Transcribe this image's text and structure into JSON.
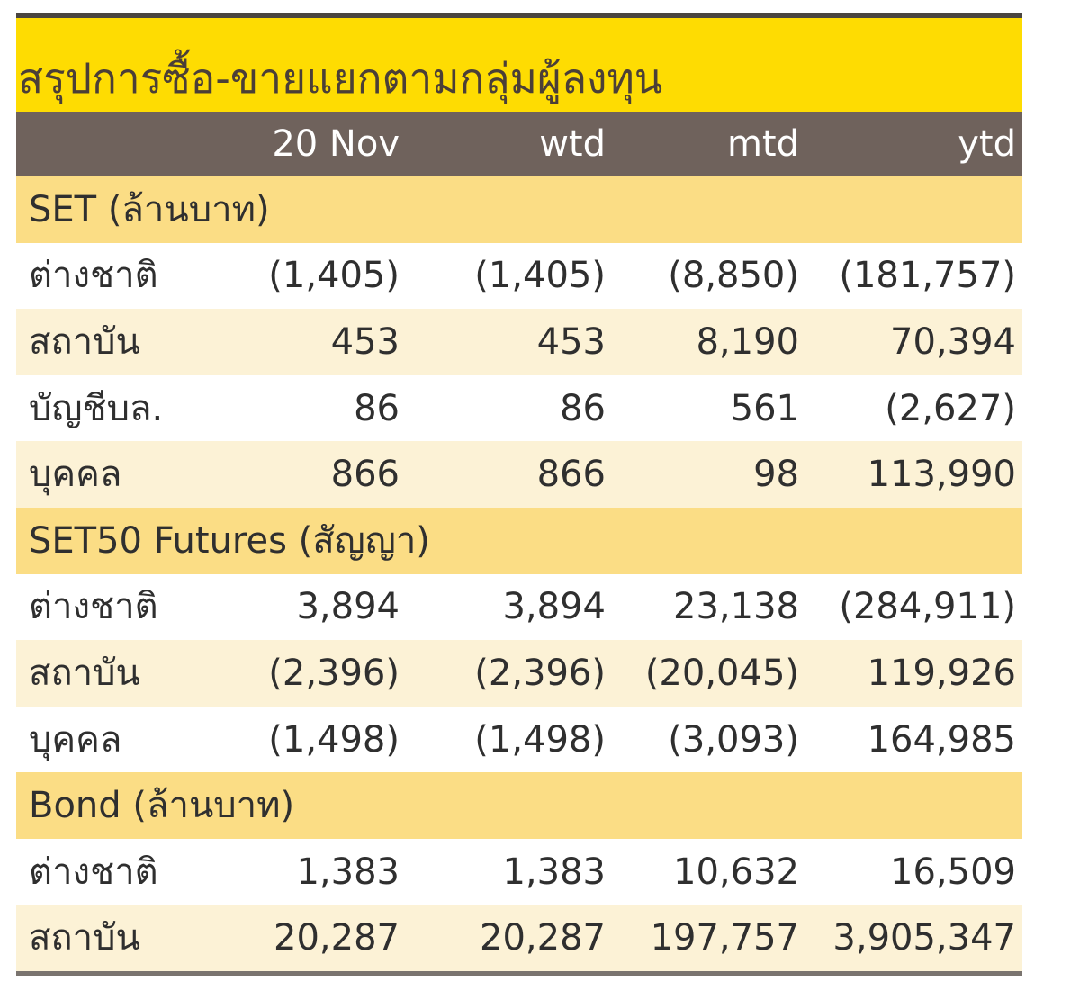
{
  "title": "สรุปการซื้อ-ขายแยกตามกลุ่มผู้ลงทุน",
  "columns": [
    "",
    "20 Nov",
    "wtd",
    "mtd",
    "ytd"
  ],
  "sections": [
    {
      "name": "SET (ล้านบาท)",
      "rows": [
        {
          "label": "ต่างชาติ",
          "values": [
            "(1,405)",
            "(1,405)",
            "(8,850)",
            "(181,757)"
          ]
        },
        {
          "label": "สถาบัน",
          "values": [
            "453",
            "453",
            "8,190",
            "70,394"
          ]
        },
        {
          "label": "บัญชีบล.",
          "values": [
            "86",
            "86",
            "561",
            "(2,627)"
          ]
        },
        {
          "label": "บุคคล",
          "values": [
            "866",
            "866",
            "98",
            "113,990"
          ]
        }
      ]
    },
    {
      "name": "SET50 Futures (สัญญา)",
      "rows": [
        {
          "label": "ต่างชาติ",
          "values": [
            "3,894",
            "3,894",
            "23,138",
            "(284,911)"
          ]
        },
        {
          "label": "สถาบัน",
          "values": [
            "(2,396)",
            "(2,396)",
            "(20,045)",
            "119,926"
          ]
        },
        {
          "label": "บุคคล",
          "values": [
            "(1,498)",
            "(1,498)",
            "(3,093)",
            "164,985"
          ]
        }
      ]
    },
    {
      "name": "Bond (ล้านบาท)",
      "rows": [
        {
          "label": "ต่างชาติ",
          "values": [
            "1,383",
            "1,383",
            "10,632",
            "16,509"
          ]
        },
        {
          "label": "สถาบัน",
          "values": [
            "20,287",
            "20,287",
            "197,757",
            "3,905,347"
          ]
        }
      ]
    }
  ],
  "colors": {
    "title_bg": "#fedc02",
    "header_bg": "#6f625c",
    "section_bg": "#fbdd85",
    "row_alt_bg": "#fcf2d6",
    "rule": "#4a4540"
  }
}
